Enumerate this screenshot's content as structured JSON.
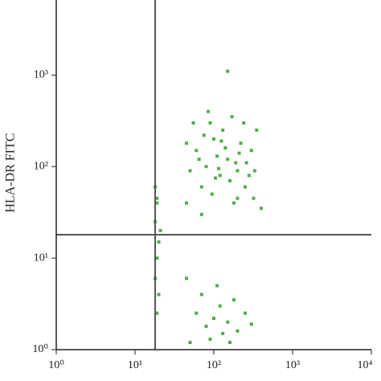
{
  "chart_data": {
    "type": "scatter",
    "y_label": "HLA-DR FITC",
    "xscale": "log",
    "yscale": "log",
    "xlim": [
      1,
      10000
    ],
    "ylim": [
      1,
      6600
    ],
    "xticks": [
      {
        "value": 1,
        "label": "10⁰"
      },
      {
        "value": 10,
        "label": "10¹"
      },
      {
        "value": 100,
        "label": "10²"
      },
      {
        "value": 1000,
        "label": "10³"
      },
      {
        "value": 10000,
        "label": "10⁴"
      }
    ],
    "yticks": [
      {
        "value": 1,
        "label": "10⁰"
      },
      {
        "value": 10,
        "label": "10¹"
      },
      {
        "value": 100,
        "label": "10²"
      },
      {
        "value": 1000,
        "label": "10³"
      }
    ],
    "gate_x": 18,
    "gate_y": 18,
    "gate_color": "#555555",
    "color": "#4dae4a",
    "x": [
      60,
      80,
      100,
      120,
      150,
      200,
      250,
      300,
      90,
      130,
      70,
      180,
      220,
      110,
      160,
      50,
      75,
      95,
      140,
      260,
      320,
      400,
      45,
      55,
      85,
      170,
      240,
      350,
      190,
      125,
      65,
      105,
      210,
      280,
      150,
      70,
      45,
      330,
      115,
      200,
      60,
      80,
      100,
      120,
      150,
      200,
      90,
      70,
      130,
      250,
      180,
      50,
      110,
      160,
      300,
      45,
      18,
      19,
      18,
      20,
      19,
      18,
      20,
      19,
      21,
      19
    ],
    "y": [
      150,
      100,
      200,
      80,
      120,
      90,
      60,
      150,
      300,
      250,
      60,
      40,
      180,
      130,
      70,
      90,
      220,
      50,
      160,
      110,
      45,
      35,
      40,
      300,
      400,
      350,
      300,
      250,
      110,
      190,
      120,
      75,
      140,
      80,
      1100,
      30,
      180,
      90,
      95,
      45,
      2.5,
      1.8,
      2.2,
      3.0,
      2.0,
      1.6,
      1.3,
      4.0,
      1.5,
      2.5,
      3.5,
      1.2,
      5.0,
      1.2,
      1.9,
      6,
      60,
      40,
      25,
      15,
      10,
      6,
      4,
      2.5,
      20,
      45
    ]
  }
}
